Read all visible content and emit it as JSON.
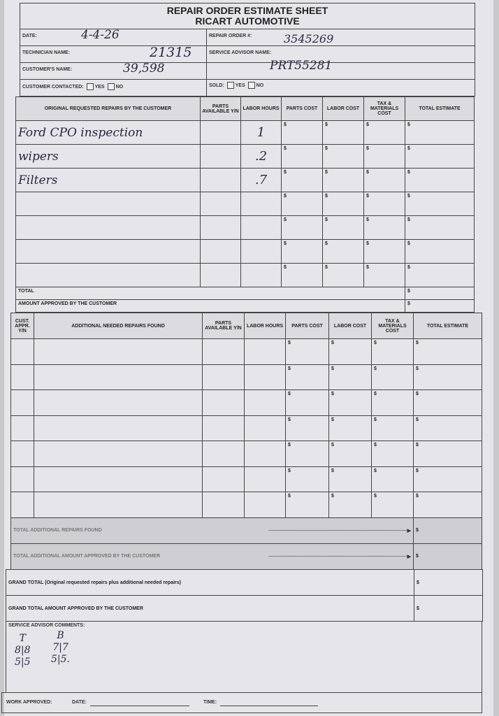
{
  "header": {
    "title": "REPAIR ORDER ESTIMATE SHEET",
    "subtitle": "RICART AUTOMOTIVE"
  },
  "fields": {
    "date_label": "DATE:",
    "date_value": "4-4-26",
    "repair_order_label": "REPAIR ORDER #:",
    "repair_order_value": "3545269",
    "technician_label": "TECHNICIAN NAME:",
    "technician_value": "21315",
    "service_advisor_label": "SERVICE ADVISOR NAME:",
    "service_advisor_value": "PRT55281",
    "customer_label": "CUSTOMER'S NAME:",
    "customer_value": "39,598",
    "contacted_label": "CUSTOMER CONTACTED:",
    "sold_label": "SOLD:",
    "yes": "YES",
    "no": "NO"
  },
  "original": {
    "headers": [
      "ORIGINAL REQUESTED REPAIRS BY THE CUSTOMER",
      "PARTS AVAILABLE Y/N",
      "LABOR HOURS",
      "PARTS COST",
      "LABOR COST",
      "TAX & MATERIALS COST",
      "TOTAL ESTIMATE"
    ],
    "rows": [
      {
        "repair": "Ford CPO inspection",
        "hours": "1"
      },
      {
        "repair": "wipers",
        "hours": ".2"
      },
      {
        "repair": "Filters",
        "hours": ".7"
      },
      {
        "repair": "",
        "hours": ""
      },
      {
        "repair": "",
        "hours": ""
      },
      {
        "repair": "",
        "hours": ""
      },
      {
        "repair": "",
        "hours": ""
      }
    ],
    "currency": "$",
    "total_label": "TOTAL",
    "approved_label": "AMOUNT APPROVED BY THE CUSTOMER"
  },
  "additional": {
    "headers": [
      "CUST. APPR. Y/N",
      "ADDITIONAL NEEDED REPAIRS FOUND",
      "PARTS AVAILABLE Y/N",
      "LABOR HOURS",
      "PARTS COST",
      "LABOR COST",
      "TAX & MATERIALS COST",
      "TOTAL ESTIMATE"
    ],
    "row_count": 7,
    "total_found_label": "TOTAL ADDITIONAL REPAIRS FOUND",
    "total_approved_label": "TOTAL ADDITIONAL AMOUNT APPROVED BY THE CUSTOMER"
  },
  "grand": {
    "total_label": "GRAND TOTAL (Original requested repairs plus additional needed repairs)",
    "approved_label": "GRAND TOTAL AMOUNT APPROVED BY THE CUSTOMER"
  },
  "comments": {
    "label": "SERVICE ADVISOR COMMENTS:",
    "notes": [
      {
        "head": "T",
        "top": "8|8",
        "bottom": "5|5"
      },
      {
        "head": "B",
        "top": "7|7",
        "bottom": "5|5."
      }
    ]
  },
  "footer": {
    "work_approved": "WORK APPROVED:",
    "date": "DATE:",
    "time": "TIME:"
  }
}
